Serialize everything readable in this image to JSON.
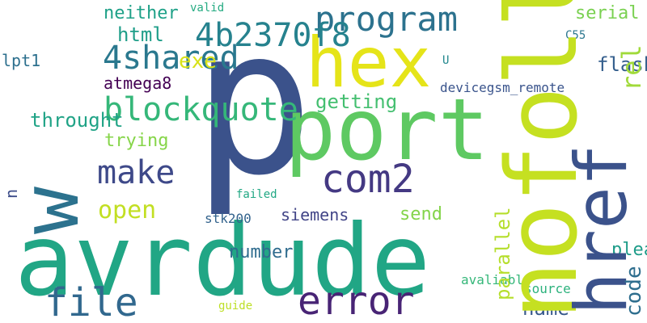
{
  "cloud": {
    "words": [
      {
        "id": "p",
        "text": "p",
        "color": "#3b528b"
      },
      {
        "id": "avrdude",
        "text": "avrdude",
        "color": "#21a685"
      },
      {
        "id": "port",
        "text": "port",
        "color": "#5ec962"
      },
      {
        "id": "hex",
        "text": "hex",
        "color": "#e5e419"
      },
      {
        "id": "com2",
        "text": "com2",
        "color": "#443983"
      },
      {
        "id": "error",
        "text": "error",
        "color": "#482475"
      },
      {
        "id": "file",
        "text": "file",
        "color": "#31688e"
      },
      {
        "id": "program",
        "text": "program",
        "color": "#2c728e"
      },
      {
        "id": "4b2370f8",
        "text": "4b2370f8",
        "color": "#26828e"
      },
      {
        "id": "4shared",
        "text": "4shared",
        "color": "#2a788e"
      },
      {
        "id": "blockquote",
        "text": "blockquote",
        "color": "#35b779"
      },
      {
        "id": "make",
        "text": "make",
        "color": "#3e4989"
      },
      {
        "id": "exe",
        "text": "exe",
        "color": "#d8e219"
      },
      {
        "id": "html",
        "text": "html",
        "color": "#1f9e89"
      },
      {
        "id": "open",
        "text": "open",
        "color": "#c2df23"
      },
      {
        "id": "siemens",
        "text": "siemens",
        "color": "#414487"
      },
      {
        "id": "send",
        "text": "send",
        "color": "#84d44b"
      },
      {
        "id": "trying",
        "text": "trying",
        "color": "#86d549"
      },
      {
        "id": "atmega8",
        "text": "atmega8",
        "color": "#440154"
      },
      {
        "id": "throught",
        "text": "throught",
        "color": "#20a386"
      },
      {
        "id": "getting",
        "text": "getting",
        "color": "#44bf70"
      },
      {
        "id": "neither",
        "text": "neither",
        "color": "#1fa188"
      },
      {
        "id": "lpt1",
        "text": "lpt1",
        "color": "#2d708e"
      },
      {
        "id": "serial",
        "text": "serial",
        "color": "#7ad151"
      },
      {
        "id": "flash",
        "text": "flash",
        "color": "#355f8d"
      },
      {
        "id": "name",
        "text": "name",
        "color": "#38598c"
      },
      {
        "id": "valid",
        "text": "valid",
        "color": "#25ab82"
      },
      {
        "id": "c55",
        "text": "C55",
        "color": "#2a768e"
      },
      {
        "id": "u",
        "text": "U",
        "color": "#23888e"
      },
      {
        "id": "devicegsm",
        "text": "devicegsm_remote",
        "color": "#3a548c"
      },
      {
        "id": "failed",
        "text": "failed",
        "color": "#22a884"
      },
      {
        "id": "stk200",
        "text": "stk200",
        "color": "#33638d"
      },
      {
        "id": "number",
        "text": "number",
        "color": "#2f6c8e"
      },
      {
        "id": "avaliable",
        "text": "avaliable",
        "color": "#35b779"
      },
      {
        "id": "source",
        "text": "source",
        "color": "#2db27d"
      },
      {
        "id": "guide",
        "text": "guide",
        "color": "#bddf26"
      },
      {
        "id": "please",
        "text": "please",
        "color": "#1e9c89"
      },
      {
        "id": "nofollow",
        "text": "nofollow",
        "color": "#c5e021"
      },
      {
        "id": "href",
        "text": "href",
        "color": "#3b528b"
      },
      {
        "id": "w",
        "text": "w",
        "color": "#2c728e"
      },
      {
        "id": "rel",
        "text": "rel",
        "color": "#a0da39"
      },
      {
        "id": "code",
        "text": "code",
        "color": "#2e6e8e"
      },
      {
        "id": "parallel",
        "text": "parallel",
        "color": "#b5de2b"
      },
      {
        "id": "n",
        "text": "n",
        "color": "#3d4d8a"
      }
    ]
  }
}
